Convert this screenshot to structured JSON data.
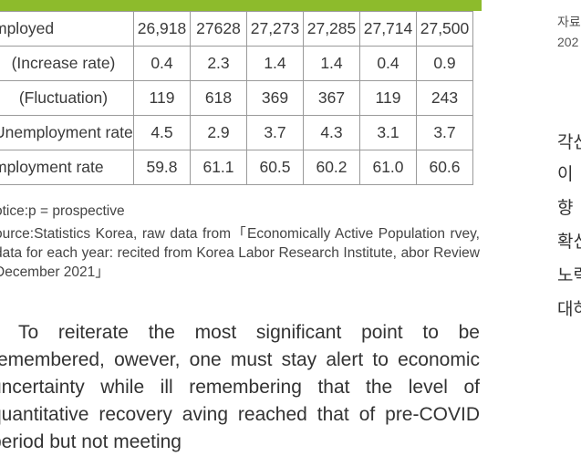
{
  "header_cells": [
    "",
    "",
    "",
    "",
    "",
    ""
  ],
  "table": {
    "rows": [
      {
        "label": "mployed",
        "indent": false,
        "values": [
          "26,918",
          "27628",
          "27,273",
          "27,285",
          "27,714",
          "27,500"
        ]
      },
      {
        "label": "(Increase rate)",
        "indent": true,
        "values": [
          "0.4",
          "2.3",
          "1.4",
          "1.4",
          "0.4",
          "0.9"
        ]
      },
      {
        "label": "(Fluctuation)",
        "indent": true,
        "values": [
          "119",
          "618",
          "369",
          "367",
          "119",
          "243"
        ]
      },
      {
        "label": "Unemployment rate",
        "indent": false,
        "values": [
          "4.5",
          "2.9",
          "3.7",
          "4.3",
          "3.1",
          "3.7"
        ]
      },
      {
        "label": "mployment rate",
        "indent": false,
        "values": [
          "59.8",
          "61.1",
          "60.5",
          "60.2",
          "61.0",
          "60.6"
        ]
      }
    ]
  },
  "notice": "otice:p = prospective",
  "source": "ource:Statistics Korea, raw data from「Economically Active Population rvey, data for each year: recited from Korea Labor Research Institute, abor Review December 2021」",
  "body_paragraph": "To reiterate the most significant point to be remembered, owever, one must stay alert to economic uncertainty while ill remembering that the level of quantitative recovery aving reached that of pre-COVID period but not meeting",
  "right_column": {
    "small_lines": [
      "자료",
      "202"
    ],
    "lines": [
      "각산",
      "이 ",
      "향 ",
      "확신",
      "노력",
      "대하"
    ]
  }
}
